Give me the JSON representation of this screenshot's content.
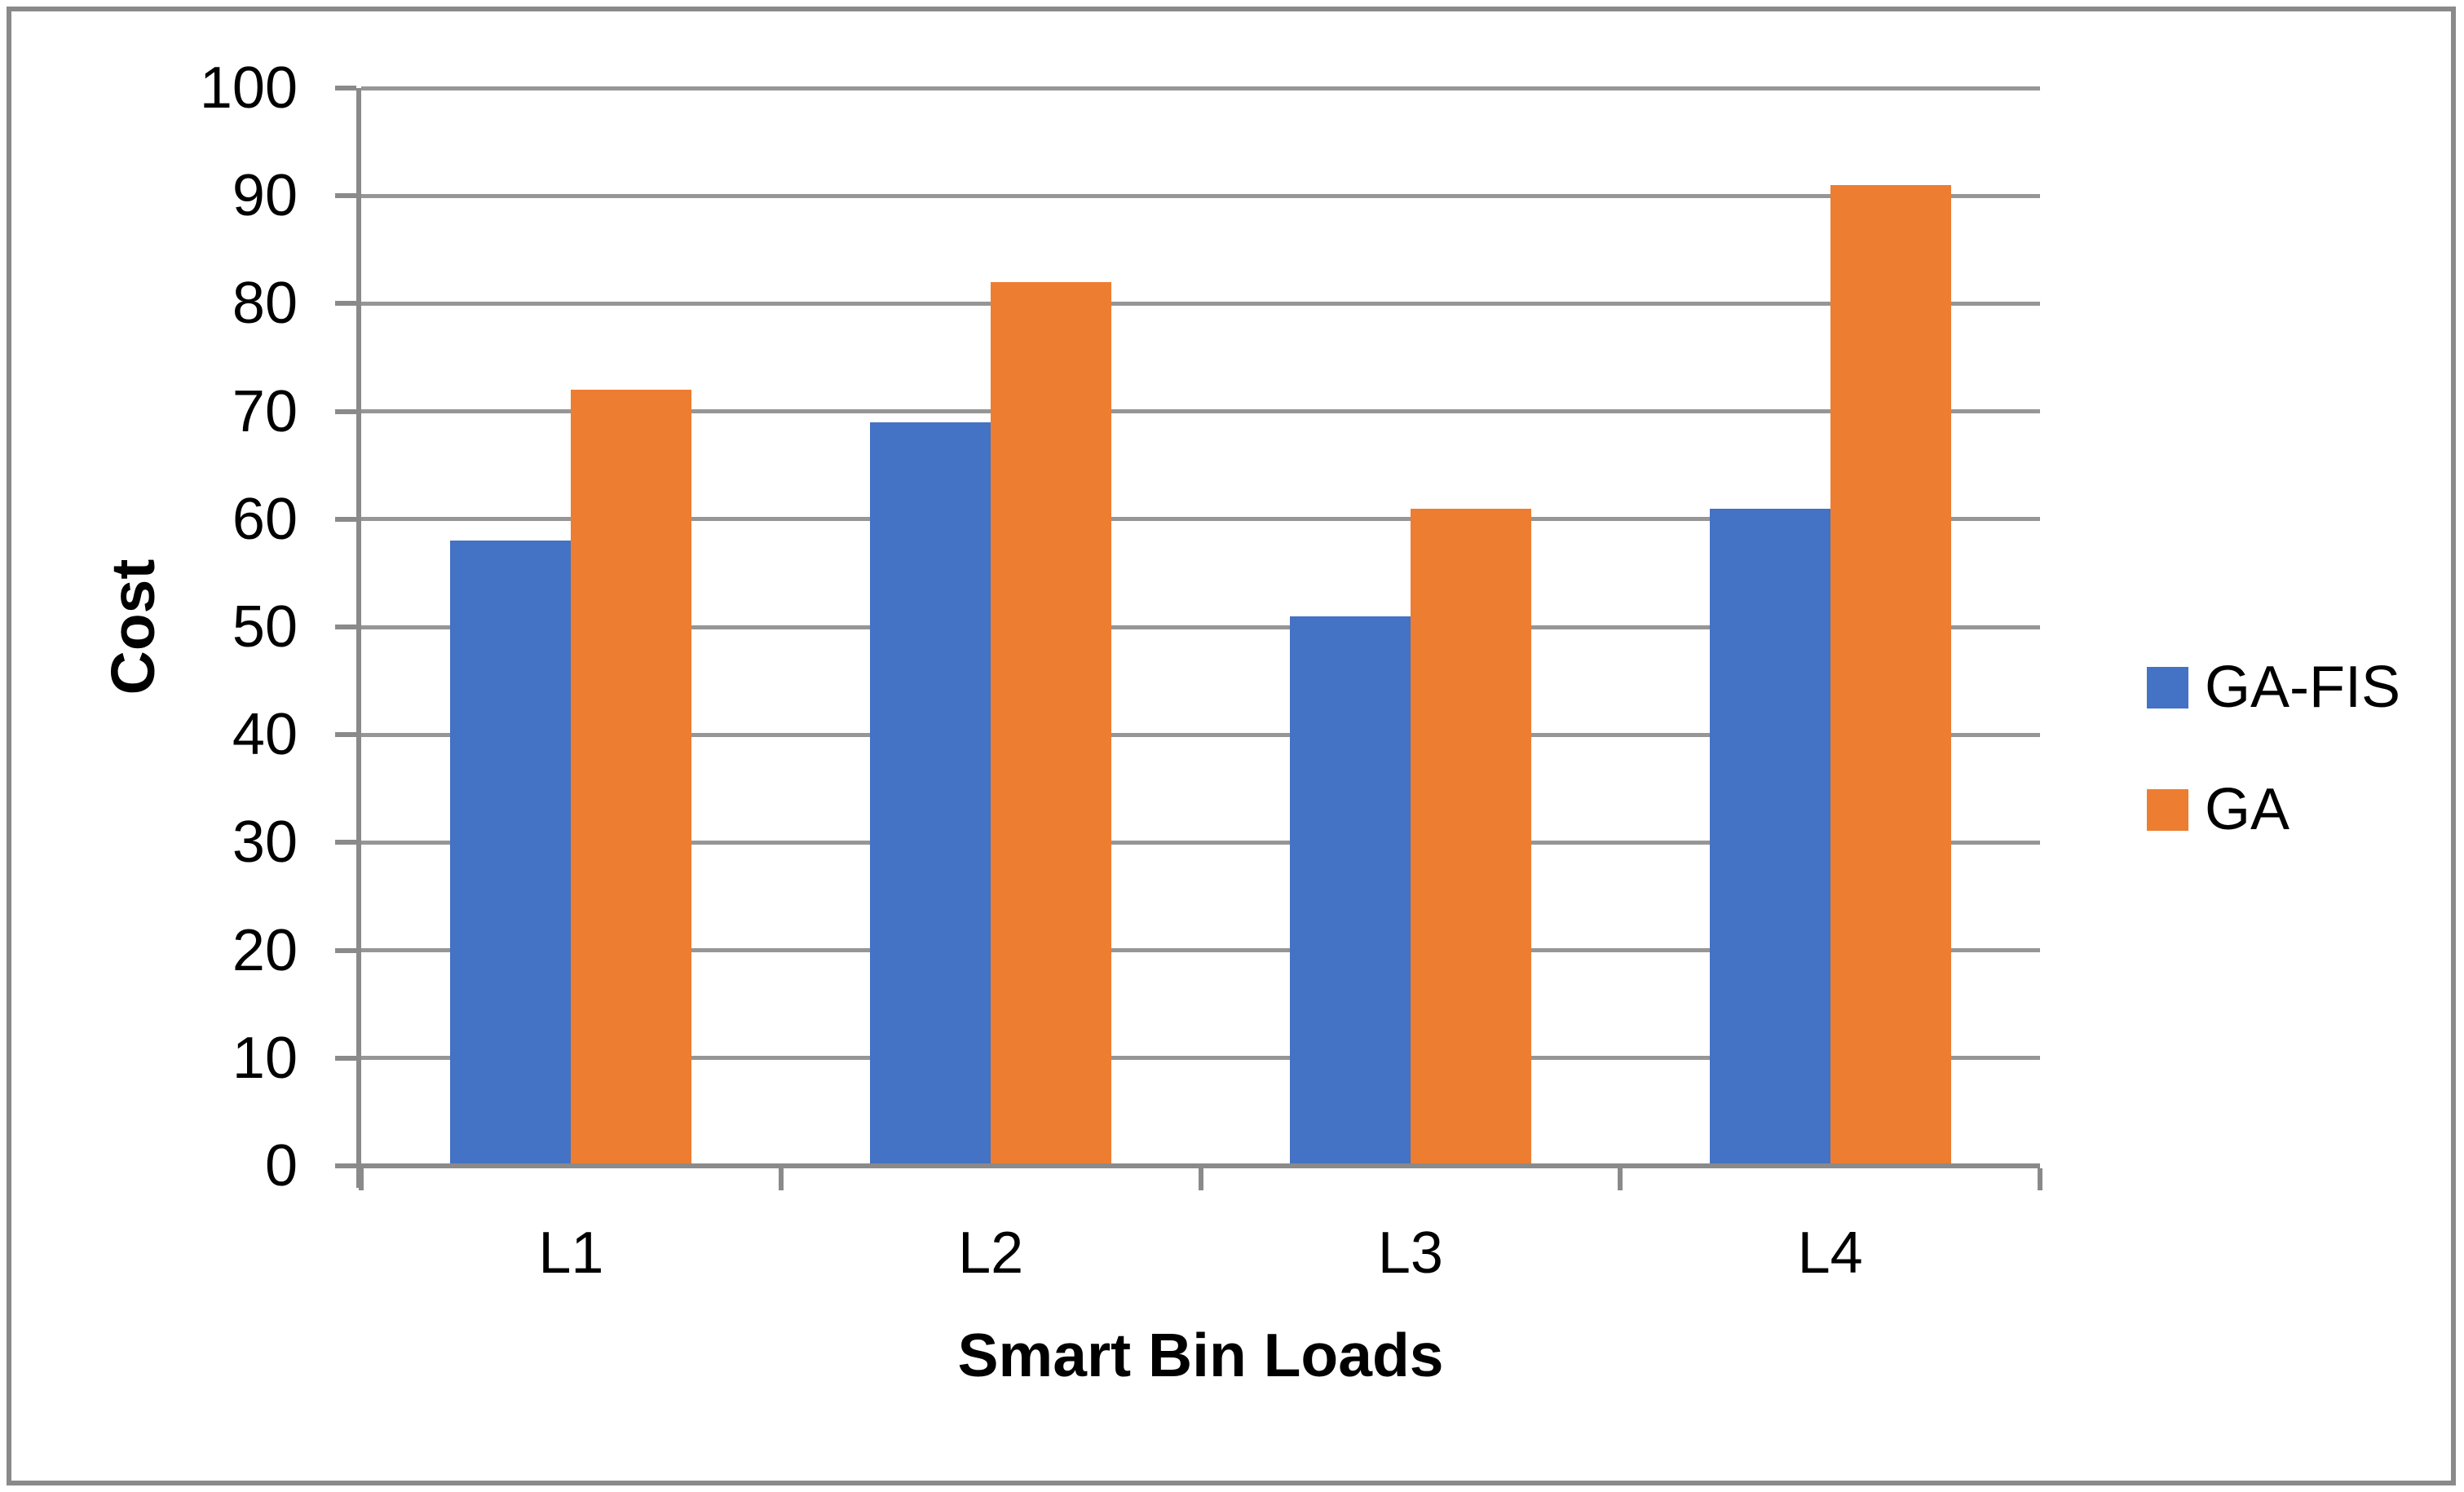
{
  "figure": {
    "background": "#ffffff",
    "border_color": "#8a8a8a"
  },
  "chart_data": {
    "type": "bar",
    "title": "",
    "categories": [
      "L1",
      "L2",
      "L3",
      "L4"
    ],
    "series": [
      {
        "name": "GA-FIS",
        "color": "#4472C4",
        "values": [
          58,
          69,
          51,
          61
        ]
      },
      {
        "name": "GA",
        "color": "#ED7D31",
        "values": [
          72,
          82,
          61,
          91
        ]
      }
    ],
    "xlabel": "Smart Bin Loads",
    "ylabel": "Cost",
    "ylim": [
      0,
      100
    ],
    "yticks": [
      0,
      10,
      20,
      30,
      40,
      50,
      60,
      70,
      80,
      90,
      100
    ],
    "grid": true,
    "grid_color": "#969696",
    "axis_color": "#8a8a8a",
    "text_color": "#000000",
    "legend_position": "right"
  }
}
